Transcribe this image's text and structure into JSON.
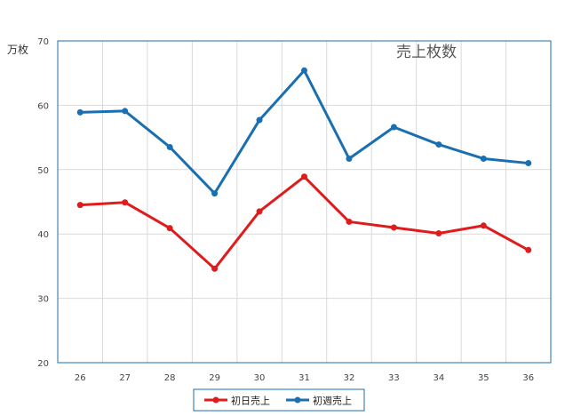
{
  "chart_data": {
    "type": "line",
    "title": "売上枚数",
    "ylabel": "万枚",
    "xlabel": "",
    "categories": [
      "26",
      "27",
      "28",
      "29",
      "30",
      "31",
      "32",
      "33",
      "34",
      "35",
      "36"
    ],
    "ylim": [
      20,
      70
    ],
    "yticks": [
      20,
      30,
      40,
      50,
      60,
      70
    ],
    "grid": true,
    "legend_position": "bottom",
    "series": [
      {
        "name": "初日売上",
        "color": "#e01b1b",
        "values": [
          44.5,
          44.9,
          40.9,
          34.6,
          43.5,
          48.9,
          41.9,
          41.0,
          40.1,
          41.3,
          37.5
        ]
      },
      {
        "name": "初週売上",
        "color": "#1a6fb0",
        "values": [
          58.9,
          59.1,
          53.5,
          46.3,
          57.7,
          65.4,
          51.7,
          56.6,
          53.9,
          51.7,
          51.0
        ]
      }
    ]
  }
}
